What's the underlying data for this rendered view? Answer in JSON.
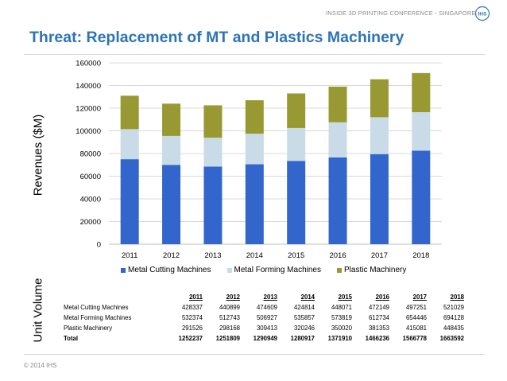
{
  "header": {
    "conference": "INSIDE 3D PRINTING CONFERENCE - SINGAPORE",
    "logo_text": "IHS"
  },
  "title": "Threat: Replacement of MT and Plastics Machinery",
  "footer": "© 2014 IHS",
  "labels": {
    "revenues": "Revenues ($M)",
    "unit_volume": "Unit Volume"
  },
  "colors": {
    "metal_cutting": "#3366cc",
    "metal_forming": "#c9dbe6",
    "plastic": "#999933",
    "title": "#2e74b5",
    "grid": "#d9d9d9"
  },
  "chart_data": {
    "type": "bar",
    "stacked": true,
    "categories": [
      "2011",
      "2012",
      "2013",
      "2014",
      "2015",
      "2016",
      "2017",
      "2018"
    ],
    "series": [
      {
        "name": "Metal Cutting Machines",
        "values": [
          75000,
          70000,
          68500,
          70500,
          73500,
          76500,
          79500,
          82500
        ]
      },
      {
        "name": "Metal Forming Machines",
        "values": [
          26500,
          25500,
          25500,
          27000,
          29000,
          31000,
          32500,
          34000
        ]
      },
      {
        "name": "Plastic Machinery",
        "values": [
          29500,
          28500,
          28500,
          29500,
          30500,
          31500,
          33500,
          34500
        ]
      }
    ],
    "ylim": [
      0,
      160000
    ],
    "yticks": [
      "0",
      "20000",
      "40000",
      "60000",
      "80000",
      "100000",
      "120000",
      "140000",
      "160000"
    ],
    "ylabel": "Revenues ($M)",
    "xlabel": "",
    "grid": true,
    "legend": "bottom"
  },
  "unit_table": {
    "years": [
      "2011",
      "2012",
      "2013",
      "2014",
      "2015",
      "2016",
      "2017",
      "2018"
    ],
    "rows": [
      {
        "label": "Metal Cutting Machines",
        "values": [
          "428337",
          "440899",
          "474609",
          "424814",
          "448071",
          "472149",
          "497251",
          "521029"
        ]
      },
      {
        "label": "Metal Forming Machines",
        "values": [
          "532374",
          "512743",
          "506927",
          "535857",
          "573819",
          "612734",
          "654446",
          "694128"
        ]
      },
      {
        "label": "Plastic Machinery",
        "values": [
          "291526",
          "298168",
          "309413",
          "320246",
          "350020",
          "381353",
          "415081",
          "448435"
        ]
      }
    ],
    "total": {
      "label": "Total",
      "values": [
        "1252237",
        "1251809",
        "1290949",
        "1280917",
        "1371910",
        "1466236",
        "1566778",
        "1663592"
      ]
    }
  }
}
